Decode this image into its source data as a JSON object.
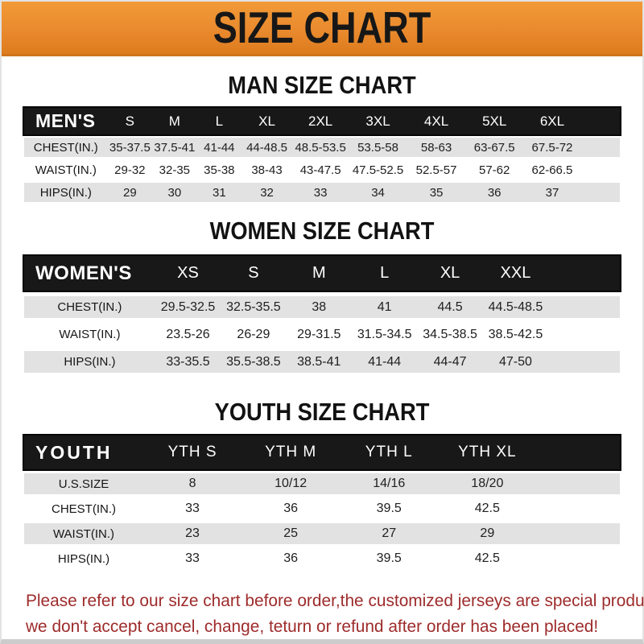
{
  "banner": {
    "title": "SIZE CHART"
  },
  "colors": {
    "banner_orange": "#e98a2e",
    "band_black": "#181818",
    "row_gray": "#e2e2e2",
    "footer_red": "#9e2b2b"
  },
  "sections": [
    {
      "heading": "MAN SIZE CHART",
      "table": {
        "label": "MEN'S",
        "columns": [
          "S",
          "M",
          "L",
          "XL",
          "2XL",
          "3XL",
          "4XL",
          "5XL",
          "6XL"
        ],
        "rows": [
          {
            "label": "CHEST(IN.)",
            "values": [
              "35-37.5",
              "37.5-41",
              "41-44",
              "44-48.5",
              "48.5-53.5",
              "53.5-58",
              "58-63",
              "63-67.5",
              "67.5-72"
            ]
          },
          {
            "label": "WAIST(IN.)",
            "values": [
              "29-32",
              "32-35",
              "35-38",
              "38-43",
              "43-47.5",
              "47.5-52.5",
              "52.5-57",
              "57-62",
              "62-66.5"
            ]
          },
          {
            "label": "HIPS(IN.)",
            "values": [
              "29",
              "30",
              "31",
              "32",
              "33",
              "34",
              "35",
              "36",
              "37"
            ]
          }
        ]
      }
    },
    {
      "heading": "WOMEN SIZE CHART",
      "table": {
        "label": "WOMEN'S",
        "columns": [
          "XS",
          "S",
          "M",
          "L",
          "XL",
          "XXL"
        ],
        "rows": [
          {
            "label": "CHEST(IN.)",
            "values": [
              "29.5-32.5",
              "32.5-35.5",
              "38",
              "41",
              "44.5",
              "44.5-48.5"
            ]
          },
          {
            "label": "WAIST(IN.)",
            "values": [
              "23.5-26",
              "26-29",
              "29-31.5",
              "31.5-34.5",
              "34.5-38.5",
              "38.5-42.5"
            ]
          },
          {
            "label": "HIPS(IN.)",
            "values": [
              "33-35.5",
              "35.5-38.5",
              "38.5-41",
              "41-44",
              "44-47",
              "47-50"
            ]
          }
        ]
      }
    },
    {
      "heading": "YOUTH SIZE CHART",
      "table": {
        "label": "YOUTH",
        "columns": [
          "YTH S",
          "YTH M",
          "YTH L",
          "YTH XL"
        ],
        "rows": [
          {
            "label": "U.S.SIZE",
            "values": [
              "8",
              "10/12",
              "14/16",
              "18/20"
            ]
          },
          {
            "label": "CHEST(IN.)",
            "values": [
              "33",
              "36",
              "39.5",
              "42.5"
            ]
          },
          {
            "label": "WAIST(IN.)",
            "values": [
              "23",
              "25",
              "27",
              "29"
            ]
          },
          {
            "label": "HIPS(IN.)",
            "values": [
              "33",
              "36",
              "39.5",
              "42.5"
            ]
          }
        ]
      }
    }
  ],
  "footer": {
    "line1": "Please refer to our size chart before order,the customized jerseys are special products,",
    "line2": "we don't accept cancel, change, teturn or refund after order has been placed!"
  }
}
